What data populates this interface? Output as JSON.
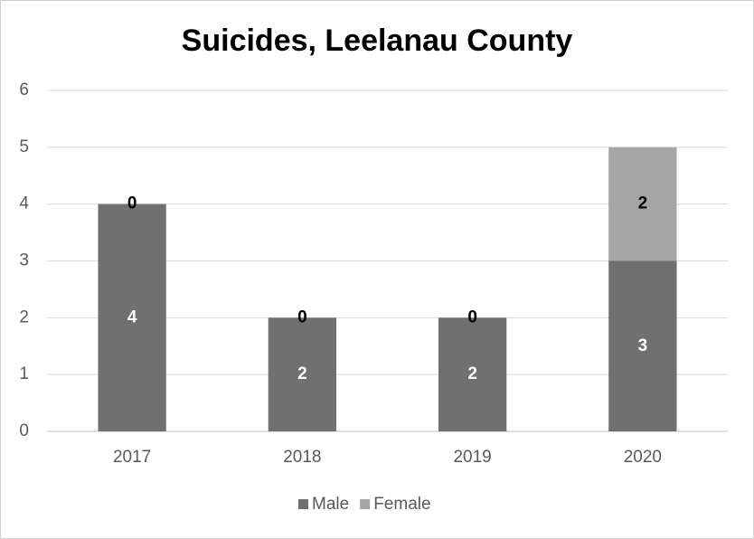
{
  "chart_data": {
    "type": "stacked_bar",
    "title": "Suicides, Leelanau County",
    "categories": [
      "2017",
      "2018",
      "2019",
      "2020"
    ],
    "series": [
      {
        "name": "Male",
        "color": "#707070",
        "values": [
          4,
          2,
          2,
          3
        ]
      },
      {
        "name": "Female",
        "color": "#a6a6a6",
        "values": [
          0,
          0,
          0,
          2
        ]
      }
    ],
    "ylim": [
      0,
      6
    ],
    "yticks": [
      0,
      1,
      2,
      3,
      4,
      5,
      6
    ],
    "grid": true,
    "legend": "bottom"
  }
}
